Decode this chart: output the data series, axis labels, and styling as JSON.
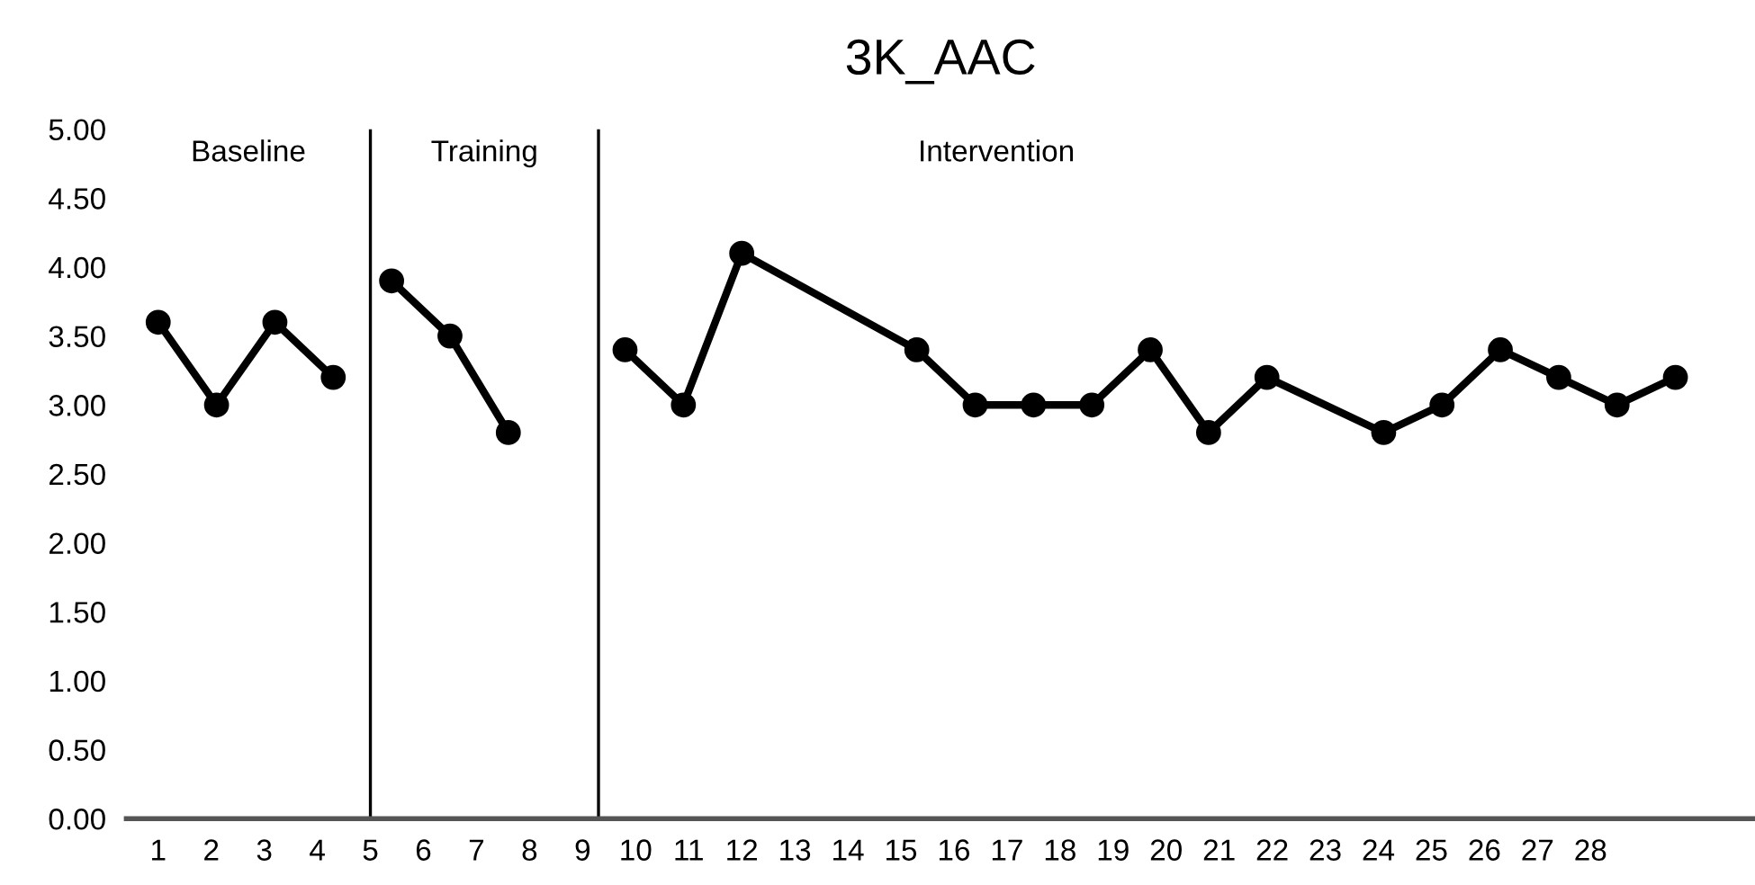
{
  "chart_data": {
    "type": "line",
    "title": "3K_AAC",
    "series": [
      {
        "color": "#000000",
        "x": [
          1.0,
          2.1,
          3.2,
          4.3
        ],
        "values": [
          3.6,
          3.0,
          3.6,
          3.2
        ]
      },
      {
        "color": "#000000",
        "x": [
          5.4,
          6.5,
          7.6
        ],
        "values": [
          3.9,
          3.5,
          2.8
        ]
      },
      {
        "color": "#000000",
        "x": [
          9.8,
          10.9,
          12.0,
          15.3,
          16.4,
          17.5,
          18.6,
          19.7,
          20.8,
          21.9,
          24.1,
          25.2,
          26.3,
          27.4,
          28.5,
          29.6
        ],
        "values": [
          3.4,
          3.0,
          4.1,
          3.4,
          3.0,
          3.0,
          3.0,
          3.4,
          2.8,
          3.2,
          2.8,
          3.0,
          3.4,
          3.2,
          3.0,
          3.2
        ]
      }
    ],
    "marker": "circle",
    "line_style": "solid",
    "xlim": [
      0.4,
      31.1
    ],
    "xticks": [
      1,
      2,
      3,
      4,
      5,
      6,
      7,
      8,
      9,
      10,
      11,
      12,
      13,
      14,
      15,
      16,
      17,
      18,
      19,
      20,
      21,
      22,
      23,
      24,
      25,
      26,
      27,
      28
    ],
    "ylim": [
      0,
      5
    ],
    "yticks": [
      {
        "value": 0,
        "label": "0.00"
      },
      {
        "value": 0.5,
        "label": "0.50"
      },
      {
        "value": 1,
        "label": "1.00"
      },
      {
        "value": 1.5,
        "label": "1.50"
      },
      {
        "value": 2,
        "label": "2.00"
      },
      {
        "value": 2.5,
        "label": "2.50"
      },
      {
        "value": 3,
        "label": "3.00"
      },
      {
        "value": 3.5,
        "label": "3.50"
      },
      {
        "value": 4,
        "label": "4.00"
      },
      {
        "value": 4.5,
        "label": "4.50"
      },
      {
        "value": 5,
        "label": "5.00"
      }
    ],
    "ref_lines": [
      {
        "axis": "x",
        "value": 5.0
      },
      {
        "axis": "x",
        "value": 9.3
      }
    ],
    "annotations": [
      "Baseline",
      "Training",
      "Intervention"
    ],
    "grid": false,
    "legend": false
  }
}
